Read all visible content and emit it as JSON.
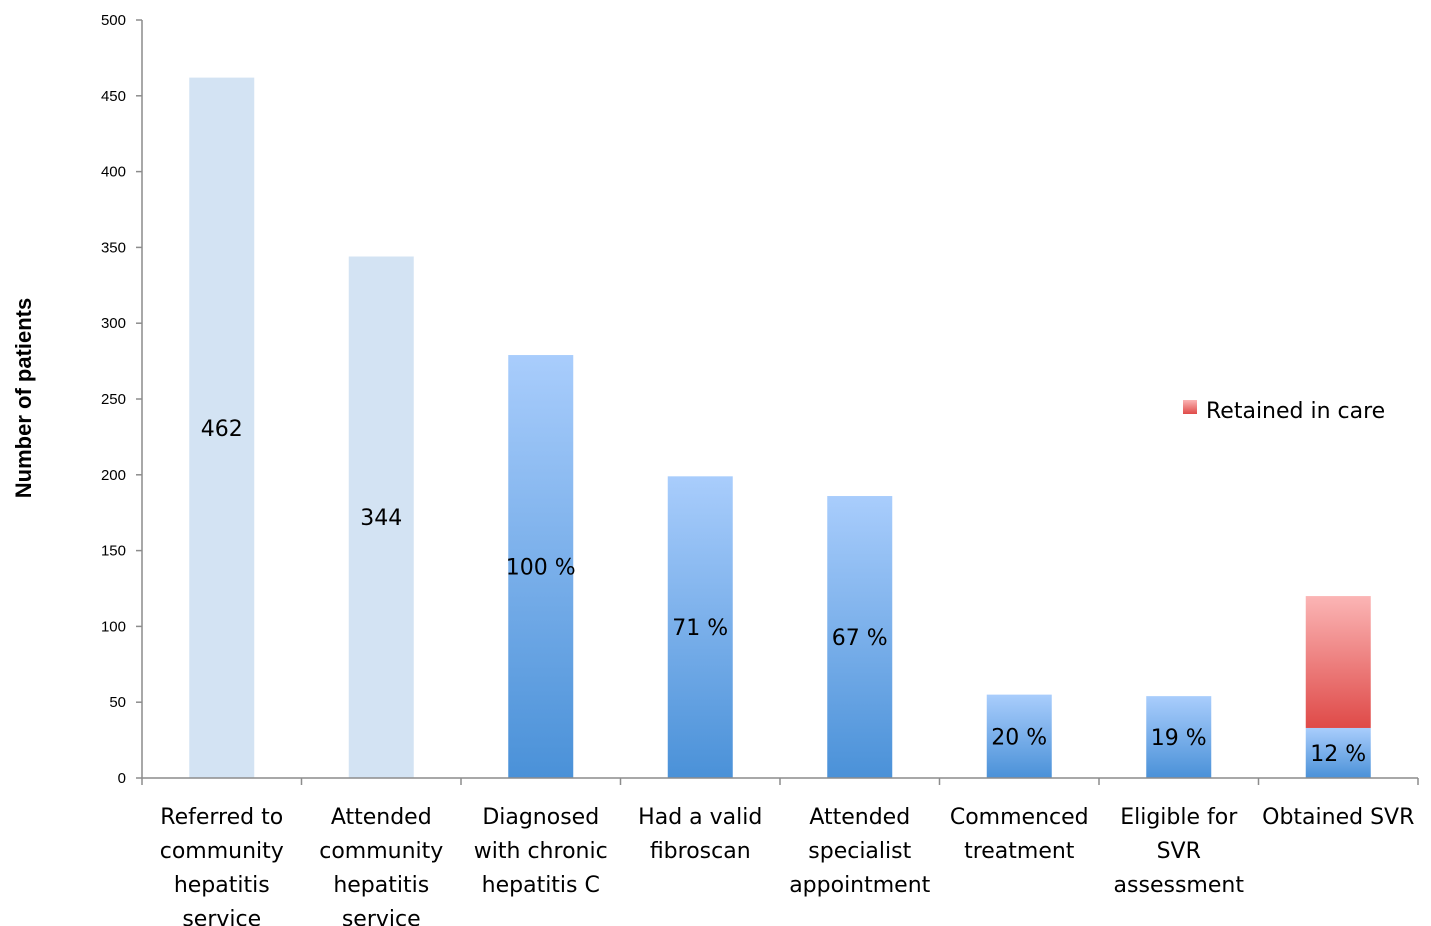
{
  "chart_data": {
    "type": "bar",
    "ylabel": "Number of patients",
    "xlabel": "",
    "ylim": [
      0,
      500
    ],
    "yticks": [
      0,
      50,
      100,
      150,
      200,
      250,
      300,
      350,
      400,
      450,
      500
    ],
    "categories": [
      [
        "Referred to",
        "community",
        "hepatitis",
        "service"
      ],
      [
        "Attended",
        "community",
        "hepatitis",
        "service"
      ],
      [
        "Diagnosed",
        "with chronic",
        "hepatitis C"
      ],
      [
        "Had a valid",
        "fibroscan"
      ],
      [
        "Attended",
        "specialist",
        "appointment"
      ],
      [
        "Commenced",
        "treatment"
      ],
      [
        "Eligible for",
        "SVR",
        "assessment"
      ],
      [
        "Obtained SVR"
      ]
    ],
    "values": [
      462,
      344,
      279,
      199,
      186,
      55,
      54,
      33
    ],
    "bar_labels": [
      "462",
      "344",
      "100 %",
      "71 %",
      "67 %",
      "20 %",
      "19 %",
      "12 %"
    ],
    "bar_styles": [
      "light",
      "light",
      "blue",
      "blue",
      "blue",
      "blue",
      "blue",
      "blue"
    ],
    "stacked_series": {
      "name": "Retained in care",
      "category_index": 7,
      "base": 33,
      "value": 87
    },
    "legend": {
      "label": "Retained in care",
      "placement": "right"
    },
    "grid": false,
    "colors": {
      "light_bar": "#d3e3f3",
      "blue_top": "#a9cdfc",
      "blue_bottom": "#4a91d8",
      "red_top": "#fbb5b5",
      "red_bottom": "#df4a48",
      "axis": "#8c8c8c"
    }
  }
}
